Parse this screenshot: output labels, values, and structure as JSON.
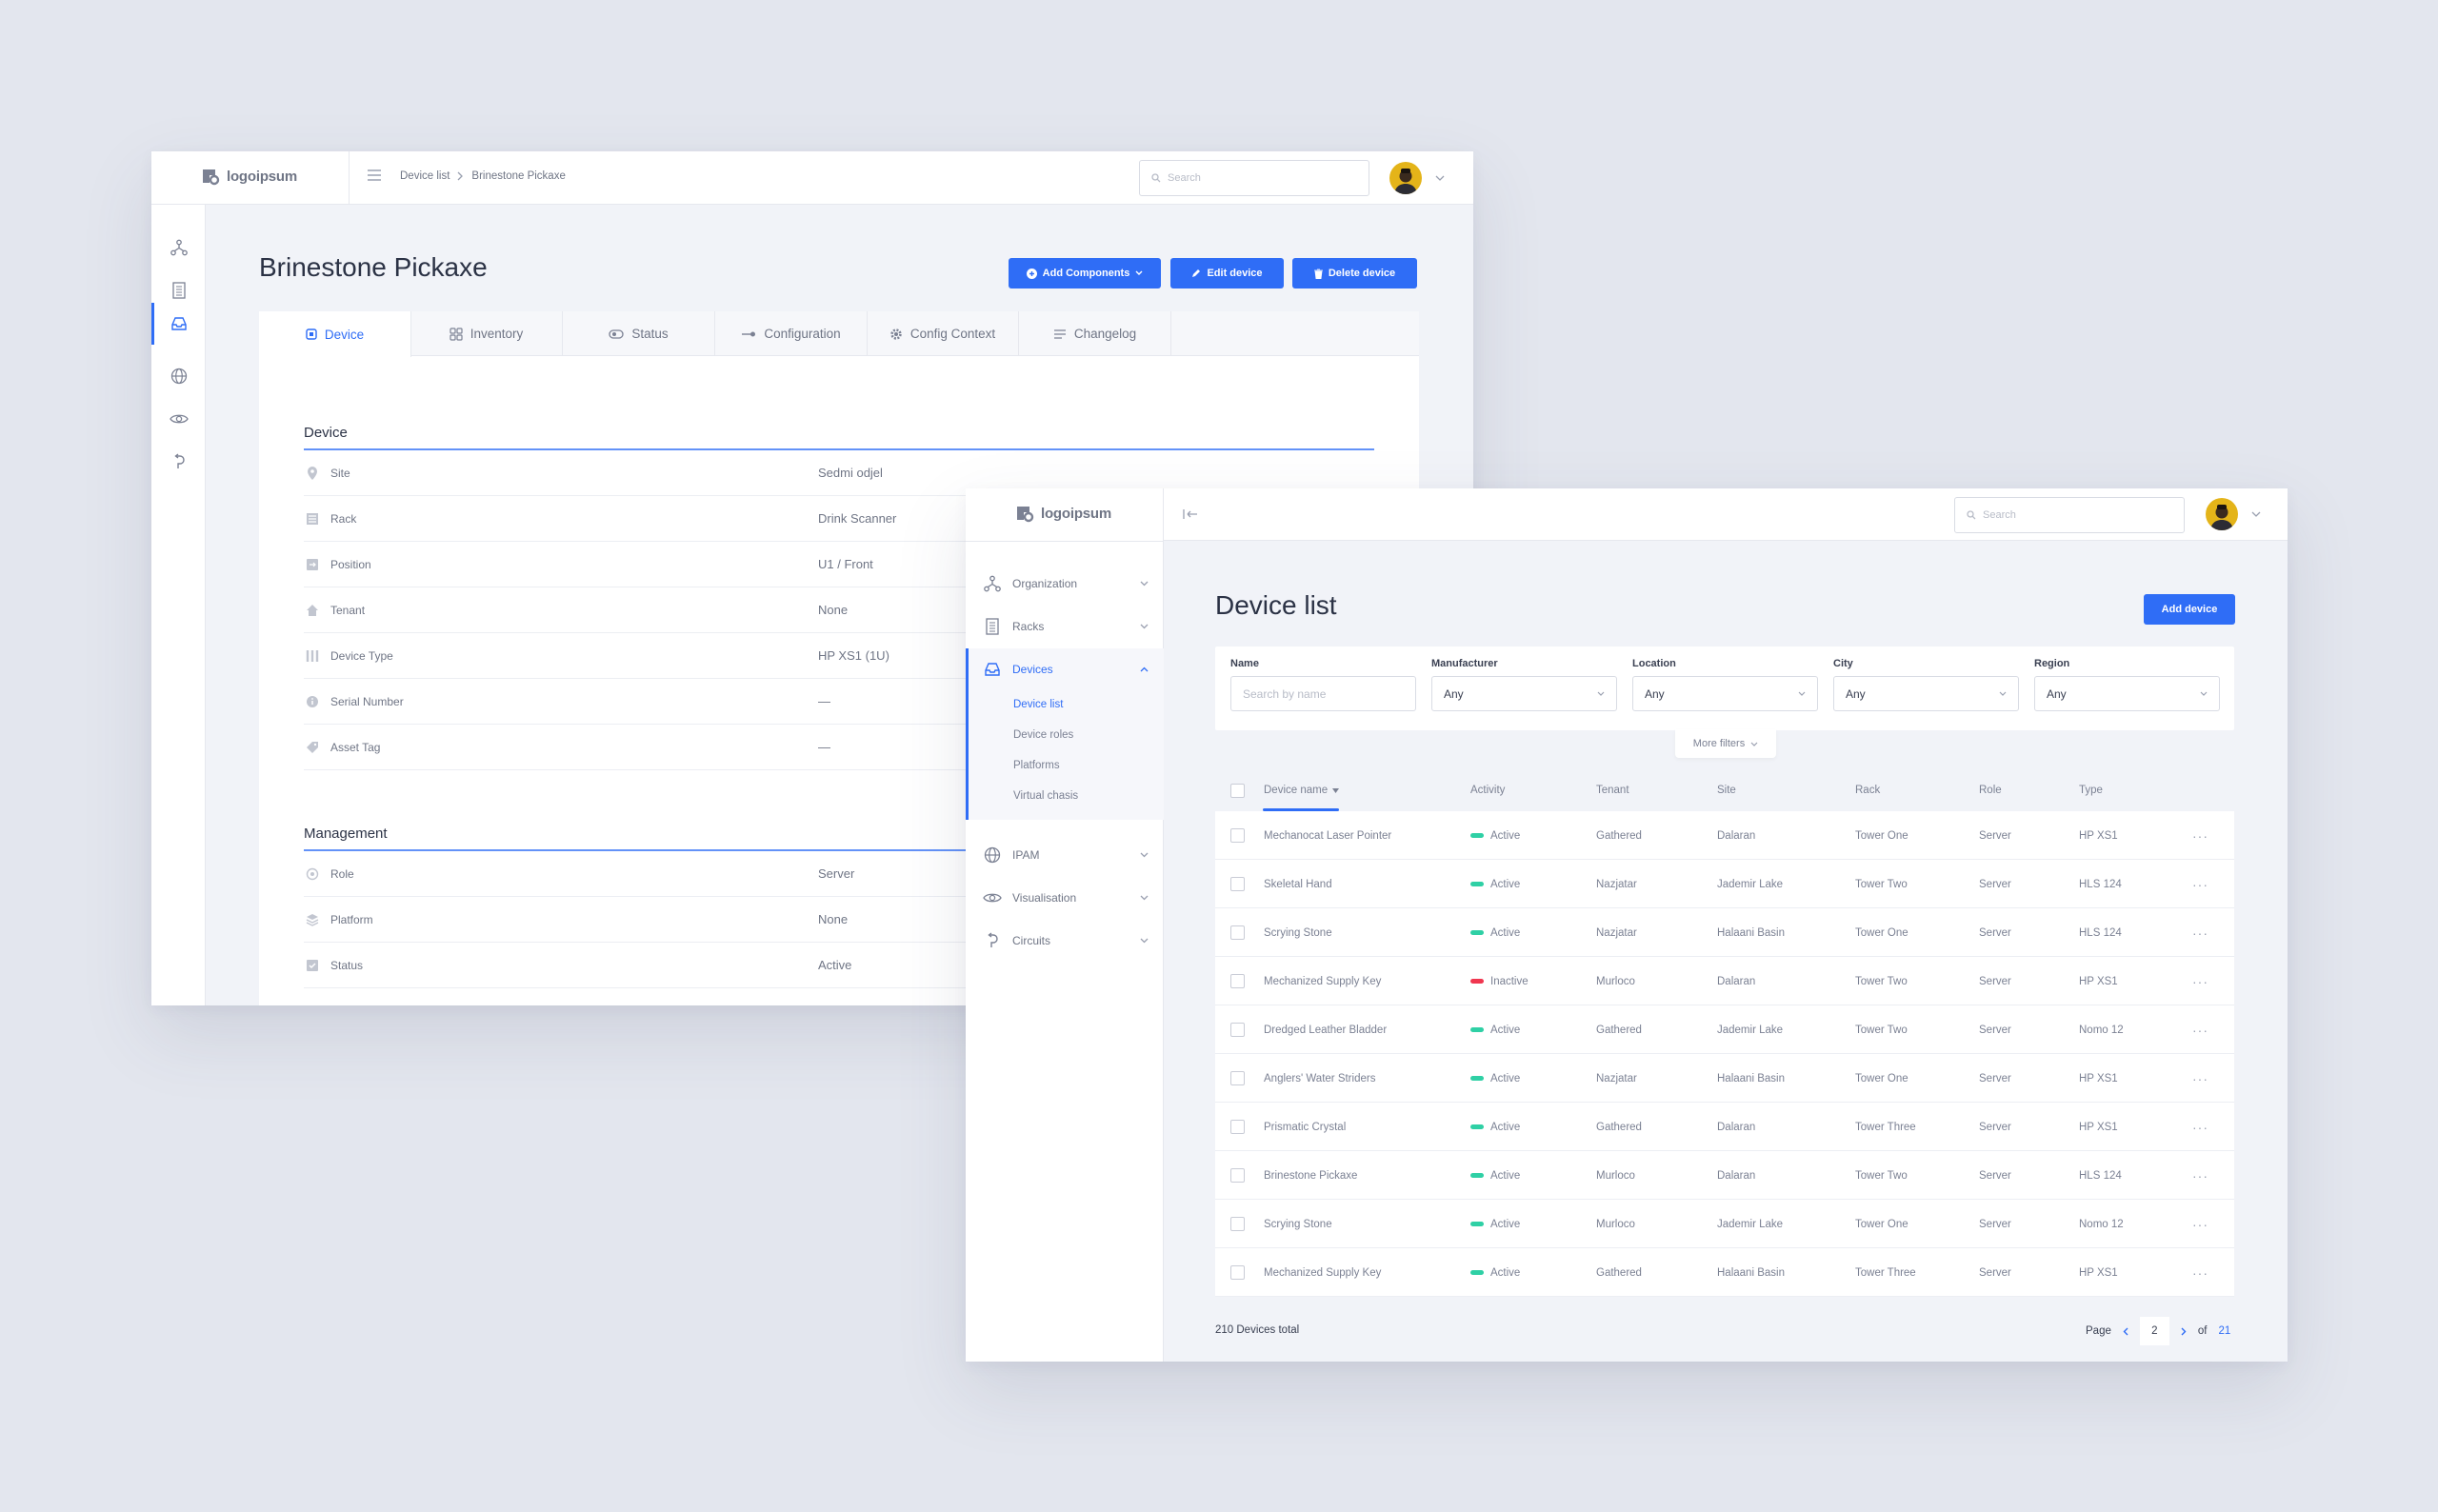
{
  "colors": {
    "accent": "#2f6df6",
    "active": "#2fd0a5",
    "inactive": "#f0364f",
    "background": "#e3e6ee"
  },
  "brand": {
    "logo_text": "logoipsum",
    "logo_icon": "logo-mark-icon"
  },
  "detail_window": {
    "breadcrumb": [
      "Device list",
      "Brinestone Pickaxe"
    ],
    "search_placeholder": "Search",
    "rail_icons": [
      "organization-icon",
      "racks-icon",
      "devices-icon",
      "ipam-icon",
      "visualisation-icon",
      "circuits-icon"
    ],
    "title": "Brinestone Pickaxe",
    "buttons": {
      "add_components": "Add Components",
      "edit_device": "Edit device",
      "delete_device": "Delete device"
    },
    "tabs": [
      {
        "label": "Device",
        "icon": "device-icon",
        "active": true
      },
      {
        "label": "Inventory",
        "icon": "inventory-icon"
      },
      {
        "label": "Status",
        "icon": "status-icon"
      },
      {
        "label": "Configuration",
        "icon": "configuration-icon"
      },
      {
        "label": "Config Context",
        "icon": "gear-icon"
      },
      {
        "label": "Changelog",
        "icon": "changelog-icon"
      }
    ],
    "device_section": {
      "title": "Device",
      "rows": [
        {
          "label": "Site",
          "value": "Sedmi odjel",
          "icon": "location-pin-icon"
        },
        {
          "label": "Rack",
          "value": "Drink Scanner",
          "icon": "rack-icon"
        },
        {
          "label": "Position",
          "value": "U1 / Front",
          "icon": "position-icon"
        },
        {
          "label": "Tenant",
          "value": "None",
          "icon": "home-icon"
        },
        {
          "label": "Device Type",
          "value": "HP XS1 (1U)",
          "icon": "device-type-icon"
        },
        {
          "label": "Serial Number",
          "value": "—",
          "icon": "info-icon"
        },
        {
          "label": "Asset Tag",
          "value": "—",
          "icon": "tag-icon"
        }
      ]
    },
    "management_section": {
      "title": "Management",
      "rows": [
        {
          "label": "Role",
          "value": "Server",
          "icon": "role-icon"
        },
        {
          "label": "Platform",
          "value": "None",
          "icon": "platform-icon"
        },
        {
          "label": "Status",
          "value": "Active",
          "icon": "checkbox-icon"
        }
      ]
    }
  },
  "list_window": {
    "search_placeholder": "Search",
    "nav": [
      {
        "label": "Organization",
        "icon": "organization-icon"
      },
      {
        "label": "Racks",
        "icon": "racks-icon"
      },
      {
        "label": "Devices",
        "icon": "devices-icon",
        "active": true,
        "sub": [
          {
            "label": "Device list",
            "active": true
          },
          {
            "label": "Device roles"
          },
          {
            "label": "Platforms"
          },
          {
            "label": "Virtual chasis"
          }
        ]
      },
      {
        "label": "IPAM",
        "icon": "ipam-icon"
      },
      {
        "label": "Visualisation",
        "icon": "visualisation-icon"
      },
      {
        "label": "Circuits",
        "icon": "circuits-icon"
      }
    ],
    "title": "Device list",
    "add_button": "Add device",
    "filters": [
      {
        "label": "Name",
        "placeholder": "Search by name"
      },
      {
        "label": "Manufacturer",
        "value": "Any"
      },
      {
        "label": "Location",
        "value": "Any"
      },
      {
        "label": "City",
        "value": "Any"
      },
      {
        "label": "Region",
        "value": "Any"
      }
    ],
    "more_filters": "More filters",
    "columns": [
      "Device name",
      "Activity",
      "Tenant",
      "Site",
      "Rack",
      "Role",
      "Type"
    ],
    "rows": [
      {
        "name": "Mechanocat Laser Pointer",
        "activity": "Active",
        "tenant": "Gathered",
        "site": "Dalaran",
        "rack": "Tower One",
        "role": "Server",
        "type": "HP XS1"
      },
      {
        "name": "Skeletal Hand",
        "activity": "Active",
        "tenant": "Nazjatar",
        "site": "Jademir Lake",
        "rack": "Tower Two",
        "role": "Server",
        "type": "HLS 124"
      },
      {
        "name": "Scrying Stone",
        "activity": "Active",
        "tenant": "Nazjatar",
        "site": "Halaani Basin",
        "rack": "Tower One",
        "role": "Server",
        "type": "HLS 124"
      },
      {
        "name": "Mechanized Supply Key",
        "activity": "Inactive",
        "tenant": "Murloco",
        "site": "Dalaran",
        "rack": "Tower Two",
        "role": "Server",
        "type": "HP XS1"
      },
      {
        "name": "Dredged Leather Bladder",
        "activity": "Active",
        "tenant": "Gathered",
        "site": "Jademir Lake",
        "rack": "Tower Two",
        "role": "Server",
        "type": "Nomo 12"
      },
      {
        "name": "Anglers' Water Striders",
        "activity": "Active",
        "tenant": "Nazjatar",
        "site": "Halaani Basin",
        "rack": "Tower One",
        "role": "Server",
        "type": "HP XS1"
      },
      {
        "name": "Prismatic Crystal",
        "activity": "Active",
        "tenant": "Gathered",
        "site": "Dalaran",
        "rack": "Tower Three",
        "role": "Server",
        "type": "HP XS1"
      },
      {
        "name": "Brinestone Pickaxe",
        "activity": "Active",
        "tenant": "Murloco",
        "site": "Dalaran",
        "rack": "Tower Two",
        "role": "Server",
        "type": "HLS 124"
      },
      {
        "name": "Scrying Stone",
        "activity": "Active",
        "tenant": "Murloco",
        "site": "Jademir Lake",
        "rack": "Tower One",
        "role": "Server",
        "type": "Nomo 12"
      },
      {
        "name": "Mechanized Supply Key",
        "activity": "Active",
        "tenant": "Gathered",
        "site": "Halaani Basin",
        "rack": "Tower Three",
        "role": "Server",
        "type": "HP XS1"
      }
    ],
    "row_action": "···",
    "total": "210 Devices total",
    "pagination": {
      "label": "Page",
      "current": "2",
      "of_label": "of",
      "total_pages": "21"
    }
  }
}
